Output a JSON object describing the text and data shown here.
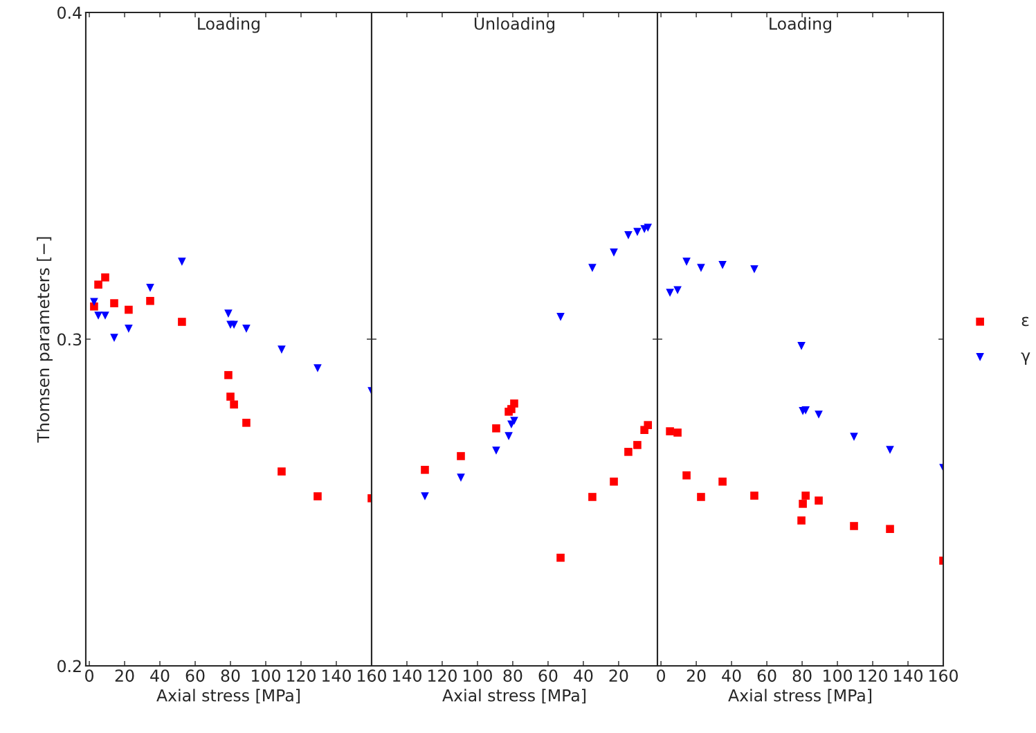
{
  "chart_data": [
    {
      "type": "scatter",
      "title": "Loading",
      "xlabel": "Axial stress [MPa]",
      "ylabel": "Thomsen parameters [−]",
      "xlim": [
        -2,
        160
      ],
      "xticks": [
        0,
        20,
        40,
        60,
        80,
        100,
        120,
        140,
        160
      ],
      "ylim": [
        0.2,
        0.4
      ],
      "yticks": [
        0.2,
        0.3,
        0.4
      ],
      "grid": false,
      "series": [
        {
          "color": "#ff0000",
          "marker": "square",
          "x": [
            2.7,
            5.1,
            9.0,
            14.1,
            22.3,
            34.5,
            52.5,
            78.8,
            80,
            82,
            89,
            109,
            129.4,
            160
          ],
          "values": [
            0.31,
            0.3167,
            0.3189,
            0.311,
            0.309,
            0.3117,
            0.3053,
            0.289,
            0.2824,
            0.28,
            0.2744,
            0.2595,
            0.2519,
            0.2513
          ]
        },
        {
          "color": "#0000ff",
          "marker": "triangle",
          "x": [
            2.7,
            5.1,
            9.0,
            14.1,
            22.3,
            34.5,
            52.5,
            78.8,
            80,
            82,
            89,
            109,
            129.4,
            160
          ],
          "values": [
            0.3114,
            0.3072,
            0.3072,
            0.3004,
            0.3032,
            0.3157,
            0.3237,
            0.3078,
            0.3044,
            0.3044,
            0.3032,
            0.2968,
            0.2911,
            0.2841
          ]
        }
      ]
    },
    {
      "type": "scatter",
      "title": "Unloading",
      "xlabel": "Axial stress [MPa]",
      "xlim": [
        160,
        -2
      ],
      "xticks": [
        140,
        120,
        100,
        80,
        60,
        40,
        20
      ],
      "ylim": [
        0.2,
        0.4
      ],
      "yticks": [
        0.2,
        0.3,
        0.4
      ],
      "tick_labels": "x",
      "grid": false,
      "series": [
        {
          "color": "#ff0000",
          "marker": "square",
          "x": [
            129.8,
            109.4,
            89.4,
            82.3,
            80.8,
            79.2,
            52.9,
            34.9,
            22.7,
            14.5,
            9.4,
            5.4,
            3.4
          ],
          "values": [
            0.26,
            0.2642,
            0.2727,
            0.2778,
            0.2786,
            0.2803,
            0.2331,
            0.2517,
            0.2564,
            0.2655,
            0.2676,
            0.2722,
            0.2737
          ]
        },
        {
          "color": "#0000ff",
          "marker": "triangle",
          "x": [
            129.8,
            109.4,
            89.4,
            82.3,
            80.8,
            79.2,
            52.9,
            34.9,
            22.7,
            14.5,
            9.4,
            5.4,
            3.4
          ],
          "values": [
            0.2519,
            0.2576,
            0.2659,
            0.2703,
            0.2739,
            0.275,
            0.3068,
            0.3218,
            0.3265,
            0.3318,
            0.3328,
            0.3337,
            0.3341
          ]
        }
      ]
    },
    {
      "type": "scatter",
      "title": "Loading",
      "xlabel": "Axial stress [MPa]",
      "xlim": [
        -2,
        160
      ],
      "xticks": [
        0,
        20,
        40,
        60,
        80,
        100,
        120,
        140,
        160
      ],
      "ylim": [
        0.2,
        0.4
      ],
      "yticks": [
        0.2,
        0.3,
        0.4
      ],
      "tick_labels": "x",
      "grid": false,
      "legend": "right",
      "series": [
        {
          "name": "ε",
          "color": "#ff0000",
          "marker": "square",
          "x": [
            5.1,
            9.4,
            14.5,
            22.7,
            34.9,
            52.9,
            79.6,
            80.4,
            82,
            89.4,
            109.4,
            129.8,
            160
          ],
          "values": [
            0.2718,
            0.2714,
            0.2583,
            0.2517,
            0.2564,
            0.2521,
            0.2445,
            0.2496,
            0.2521,
            0.2506,
            0.2428,
            0.2419,
            0.2322
          ]
        },
        {
          "name": "γ",
          "color": "#0000ff",
          "marker": "triangle",
          "x": [
            5.1,
            9.4,
            14.5,
            22.7,
            34.9,
            52.9,
            79.6,
            80.4,
            82,
            89.4,
            109.4,
            129.8,
            160
          ],
          "values": [
            0.3142,
            0.315,
            0.3237,
            0.3218,
            0.3227,
            0.3214,
            0.2979,
            0.278,
            0.2782,
            0.2769,
            0.2701,
            0.2661,
            0.2606
          ]
        }
      ]
    }
  ]
}
